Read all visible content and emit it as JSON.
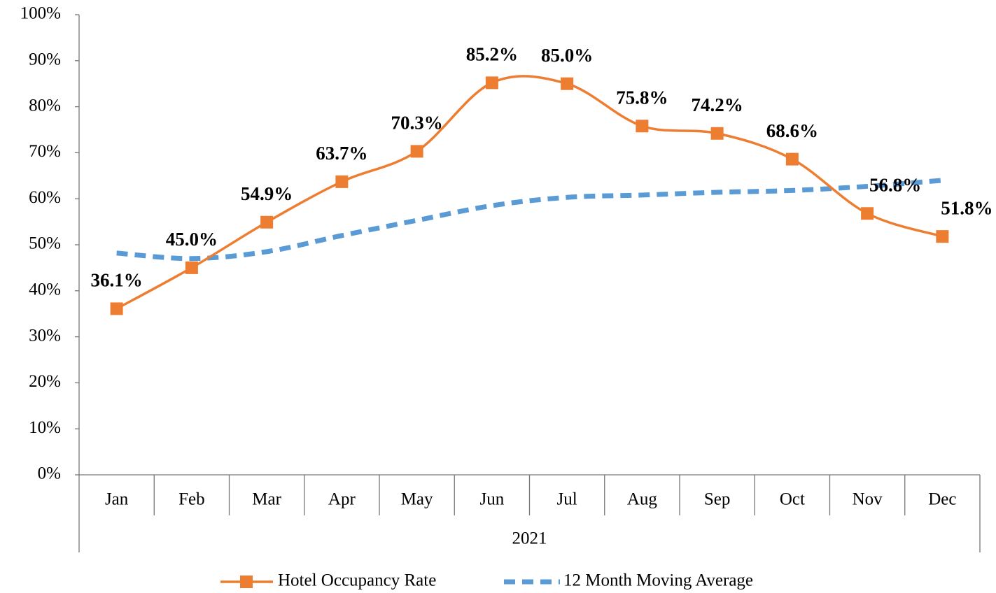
{
  "chart_data": {
    "type": "line",
    "categories": [
      "Jan",
      "Feb",
      "Mar",
      "Apr",
      "May",
      "Jun",
      "Jul",
      "Aug",
      "Sep",
      "Oct",
      "Nov",
      "Dec"
    ],
    "x_group_label": "2021",
    "series": [
      {
        "name": "Hotel Occupancy Rate",
        "color": "#ED7D31",
        "marker": "square",
        "smooth": true,
        "values": [
          36.1,
          45.0,
          54.9,
          63.7,
          70.3,
          85.2,
          85.0,
          75.8,
          74.2,
          68.6,
          56.8,
          51.8
        ],
        "value_labels": [
          "36.1%",
          "45.0%",
          "54.9%",
          "63.7%",
          "70.3%",
          "85.2%",
          "85.0%",
          "75.8%",
          "74.2%",
          "68.6%",
          "56.8%",
          "51.8%"
        ]
      },
      {
        "name": "12 Month Moving Average",
        "color": "#5B9BD5",
        "dashed": true,
        "smooth": true,
        "values": [
          48.2,
          47.0,
          48.5,
          52.0,
          55.3,
          58.5,
          60.3,
          60.8,
          61.4,
          61.8,
          62.7,
          64.0
        ]
      }
    ],
    "ylim": [
      0,
      100
    ],
    "yticks": [
      {
        "value": 0,
        "label": "0%"
      },
      {
        "value": 10,
        "label": "10%"
      },
      {
        "value": 20,
        "label": "20%"
      },
      {
        "value": 30,
        "label": "30%"
      },
      {
        "value": 40,
        "label": "40%"
      },
      {
        "value": 50,
        "label": "50%"
      },
      {
        "value": 60,
        "label": "60%"
      },
      {
        "value": 70,
        "label": "70%"
      },
      {
        "value": 80,
        "label": "80%"
      },
      {
        "value": 90,
        "label": "90%"
      },
      {
        "value": 100,
        "label": "100%"
      }
    ],
    "grid": false,
    "legend": "bottom"
  }
}
